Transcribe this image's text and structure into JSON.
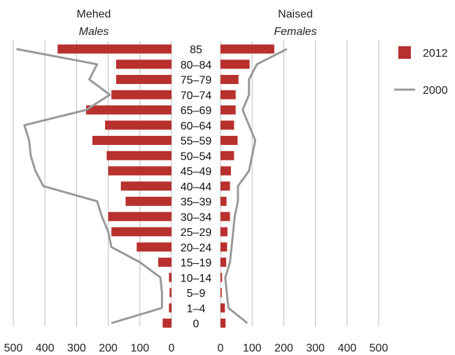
{
  "chart_data": {
    "type": "population-pyramid",
    "categories": [
      "85",
      "80–84",
      "75–79",
      "70–74",
      "65–69",
      "60–64",
      "55–59",
      "50–54",
      "45–49",
      "40–44",
      "35–39",
      "30–34",
      "25–29",
      "20–24",
      "15–19",
      "10–14",
      "5–9",
      "1–4",
      "0"
    ],
    "left_panel": {
      "title": "Mehed",
      "subtitle": "Males"
    },
    "right_panel": {
      "title": "Naised",
      "subtitle": "Females"
    },
    "xlim": [
      0,
      500
    ],
    "xticks": [
      0,
      100,
      200,
      300,
      400,
      500
    ],
    "grid": true,
    "legend_position": "right",
    "series": [
      {
        "name": "2012",
        "kind": "bar",
        "color": "#b8312f",
        "males": [
          360,
          175,
          175,
          190,
          270,
          210,
          250,
          205,
          200,
          160,
          145,
          200,
          190,
          110,
          42,
          8,
          6,
          8,
          28
        ],
        "females": [
          170,
          92,
          57,
          48,
          48,
          43,
          54,
          43,
          33,
          30,
          19,
          30,
          22,
          21,
          18,
          5,
          4,
          14,
          16
        ]
      },
      {
        "name": "2000",
        "kind": "line",
        "color": "#999999",
        "males": [
          490,
          235,
          260,
          195,
          270,
          465,
          450,
          445,
          430,
          405,
          235,
          220,
          200,
          190,
          100,
          35,
          30,
          30,
          190
        ],
        "females": [
          210,
          115,
          90,
          90,
          70,
          90,
          110,
          100,
          90,
          55,
          55,
          45,
          40,
          35,
          30,
          15,
          20,
          25,
          85
        ]
      }
    ]
  }
}
